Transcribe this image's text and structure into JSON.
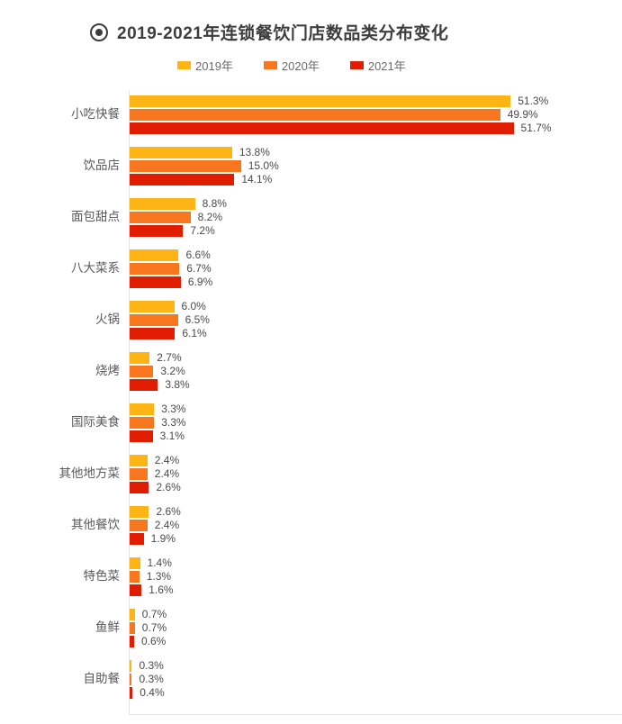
{
  "header": {
    "title": "2019-2021年连锁餐饮门店数品类分布变化"
  },
  "chart_data": {
    "type": "bar",
    "orientation": "horizontal",
    "title": "2019-2021年连锁餐饮门店数品类分布变化",
    "categories": [
      "小吃快餐",
      "饮品店",
      "面包甜点",
      "八大菜系",
      "火锅",
      "烧烤",
      "国际美食",
      "其他地方菜",
      "其他餐饮",
      "特色菜",
      "鱼鲜",
      "自助餐"
    ],
    "series": [
      {
        "name": "2019年",
        "color": "#FFB416",
        "values": [
          51.3,
          13.8,
          8.8,
          6.6,
          6.0,
          2.7,
          3.3,
          2.4,
          2.6,
          1.4,
          0.7,
          0.3
        ]
      },
      {
        "name": "2020年",
        "color": "#F7761E",
        "values": [
          49.9,
          15.0,
          8.2,
          6.7,
          6.5,
          3.2,
          3.3,
          2.4,
          2.4,
          1.3,
          0.7,
          0.3
        ]
      },
      {
        "name": "2021年",
        "color": "#E01D00",
        "values": [
          51.7,
          14.1,
          7.2,
          6.9,
          6.1,
          3.8,
          3.1,
          2.6,
          1.9,
          1.6,
          0.6,
          0.4
        ]
      }
    ],
    "value_suffix": "%",
    "value_decimals": 1,
    "value_labels_shown": true,
    "xlim": [
      0,
      66.3
    ],
    "grid": false,
    "legend_position": "top",
    "axis_color": "#e4e4e4",
    "label_color": "#595959",
    "value_label_color": "#4a4a4a"
  }
}
